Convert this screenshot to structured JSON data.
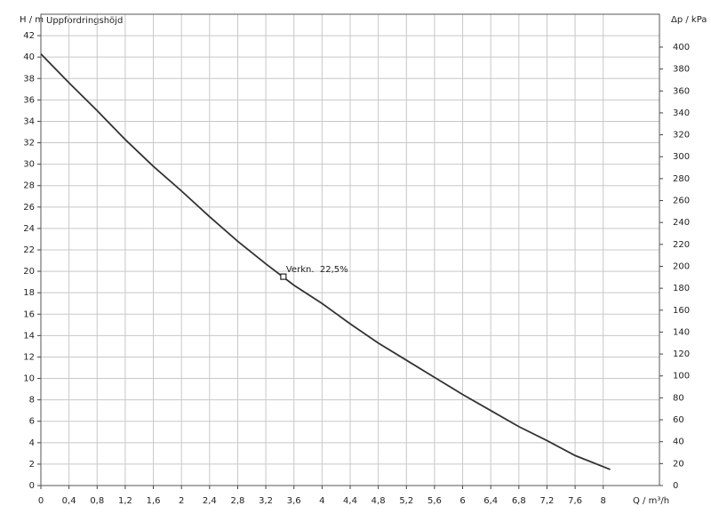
{
  "chart_data": {
    "type": "line",
    "title": "Uppfordringshöjd",
    "y_label": "H / m",
    "y2_label": "Δp / kPa",
    "x_label": "Q / m³/h",
    "x": [
      0,
      0.4,
      0.8,
      1.2,
      1.6,
      2,
      2.4,
      2.8,
      3.2,
      3.6,
      4,
      4.4,
      4.8,
      5.2,
      5.6,
      6,
      6.4,
      6.8,
      7.2,
      7.6,
      8.1
    ],
    "series": [
      {
        "color": "#333333",
        "values": [
          40.3,
          37.6,
          35,
          32.3,
          29.8,
          27.5,
          25.1,
          22.8,
          20.7,
          18.7,
          17,
          15.1,
          13.3,
          11.7,
          10.1,
          8.5,
          7,
          5.5,
          4.2,
          2.8,
          1.5
        ]
      }
    ],
    "annotation": {
      "text": "Verkn.  22,5%",
      "x": 3.45,
      "y": 19.5
    },
    "xlim": [
      0,
      8.8
    ],
    "ylim": [
      0,
      44
    ],
    "y2lim": [
      0,
      430
    ],
    "xticks": [
      0,
      {
        "value": 0.4,
        "label": "0,4"
      },
      {
        "value": 0.8,
        "label": "0,8"
      },
      {
        "value": 1.2,
        "label": "1,2"
      },
      {
        "value": 1.6,
        "label": "1,6"
      },
      2,
      {
        "value": 2.4,
        "label": "2,4"
      },
      {
        "value": 2.8,
        "label": "2,8"
      },
      {
        "value": 3.2,
        "label": "3,2"
      },
      {
        "value": 3.6,
        "label": "3,6"
      },
      4,
      {
        "value": 4.4,
        "label": "4,4"
      },
      {
        "value": 4.8,
        "label": "4,8"
      },
      {
        "value": 5.2,
        "label": "5,2"
      },
      {
        "value": 5.6,
        "label": "5,6"
      },
      6,
      {
        "value": 6.4,
        "label": "6,4"
      },
      {
        "value": 6.8,
        "label": "6,8"
      },
      {
        "value": 7.2,
        "label": "7,2"
      },
      {
        "value": 7.6,
        "label": "7,6"
      },
      8
    ],
    "yticks": [
      0,
      2,
      4,
      6,
      8,
      10,
      12,
      14,
      16,
      18,
      20,
      22,
      24,
      26,
      28,
      30,
      32,
      34,
      36,
      38,
      40,
      42
    ],
    "y2ticks": [
      0,
      20,
      40,
      60,
      80,
      100,
      120,
      140,
      160,
      180,
      200,
      220,
      240,
      260,
      280,
      300,
      320,
      340,
      360,
      380,
      400
    ],
    "grid": true
  }
}
